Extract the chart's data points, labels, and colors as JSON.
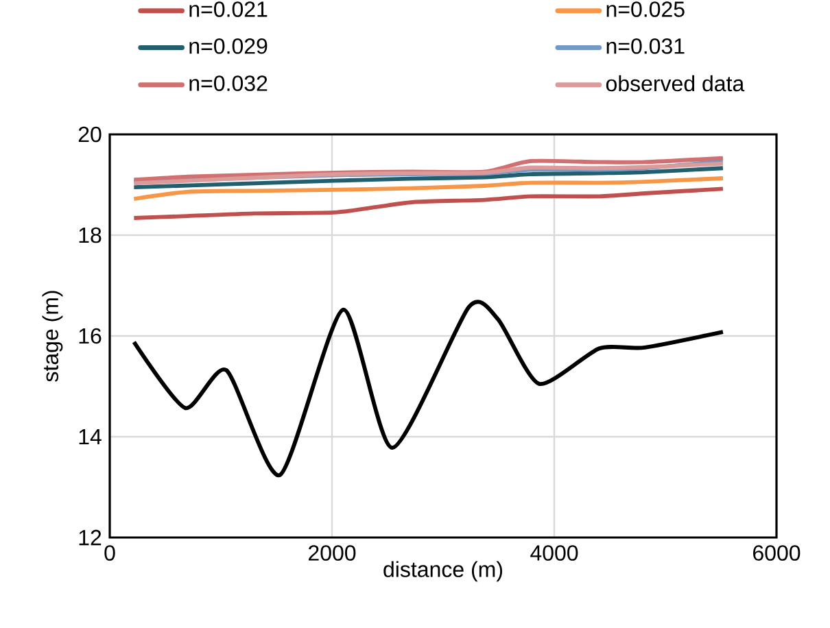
{
  "chart_data": {
    "type": "line",
    "xlabel": "distance (m)",
    "ylabel": "stage (m)",
    "xlim": [
      0,
      6000
    ],
    "ylim": [
      12,
      20
    ],
    "xticks": [
      0,
      2000,
      4000,
      6000
    ],
    "yticks": [
      12,
      14,
      16,
      18,
      20
    ],
    "grid": true,
    "legend": "top",
    "line_style": "solid",
    "series": [
      {
        "name": "n=0.021",
        "color": "#c0504d",
        "x": [
          218,
          700,
          1300,
          2016,
          2400,
          2753,
          3374,
          3786,
          4407,
          4815,
          5518
        ],
        "values": [
          18.34,
          18.38,
          18.43,
          18.45,
          18.56,
          18.66,
          18.7,
          18.77,
          18.77,
          18.83,
          18.92
        ]
      },
      {
        "name": "n=0.025",
        "color": "#f79646",
        "x": [
          218,
          700,
          1300,
          2016,
          2700,
          3374,
          3786,
          4407,
          4815,
          5518
        ],
        "values": [
          18.72,
          18.86,
          18.88,
          18.9,
          18.93,
          18.98,
          19.04,
          19.04,
          19.06,
          19.13
        ]
      },
      {
        "name": "n=0.029",
        "color": "#215f6e",
        "x": [
          218,
          1300,
          2016,
          2700,
          3374,
          3786,
          4407,
          4815,
          5518
        ],
        "values": [
          18.95,
          19.03,
          19.08,
          19.12,
          19.15,
          19.21,
          19.23,
          19.25,
          19.33
        ]
      },
      {
        "name": "n=0.031",
        "color": "#7399c6",
        "x": [
          218,
          1300,
          2016,
          2700,
          3374,
          3786,
          4407,
          4815,
          5518
        ],
        "values": [
          19.06,
          19.14,
          19.19,
          19.21,
          19.22,
          19.3,
          19.3,
          19.33,
          19.47
        ]
      },
      {
        "name": "n=0.032",
        "color": "#d07070",
        "x": [
          218,
          700,
          1300,
          2016,
          2700,
          3374,
          3786,
          4407,
          4815,
          5518
        ],
        "values": [
          19.1,
          19.16,
          19.2,
          19.24,
          19.26,
          19.26,
          19.47,
          19.45,
          19.45,
          19.53
        ]
      },
      {
        "name": "observed data",
        "color": "#dc9a9a",
        "x": [
          218,
          1300,
          2016,
          2700,
          3374,
          3786,
          4407,
          4815,
          5518
        ],
        "values": [
          19.03,
          19.14,
          19.21,
          19.23,
          19.24,
          19.34,
          19.33,
          19.35,
          19.42
        ]
      },
      {
        "color": "#000000",
        "x": [
          218,
          679,
          1049,
          1531,
          2099,
          2543,
          3230,
          3494,
          3864,
          4403,
          4815,
          5518
        ],
        "values": [
          15.88,
          14.57,
          15.32,
          13.24,
          16.52,
          13.78,
          16.57,
          16.33,
          15.05,
          15.75,
          15.77,
          16.08
        ]
      }
    ]
  }
}
